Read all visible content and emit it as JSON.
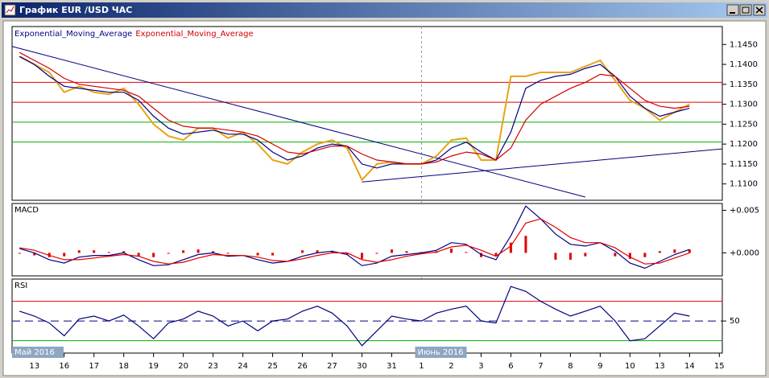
{
  "window": {
    "title": "График EUR /USD ЧАС"
  },
  "chart_data": {
    "type": "line",
    "x": [
      -0.5,
      0,
      0.5,
      1,
      1.5,
      2,
      2.5,
      3,
      3.5,
      4,
      4.5,
      5,
      5.5,
      6,
      6.5,
      7,
      7.5,
      8,
      8.5,
      9,
      9.5,
      10,
      10.5,
      11,
      11.5,
      12,
      12.5,
      13,
      13.5,
      14,
      14.5,
      15,
      15.5,
      16,
      16.5,
      17,
      17.5,
      18,
      18.5,
      19,
      19.5,
      20,
      20.5,
      21,
      21.5,
      22
    ],
    "xlim": [
      -0.75,
      23.1
    ],
    "xticks": [
      {
        "value": 0,
        "label": "13"
      },
      {
        "value": 1,
        "label": "16"
      },
      {
        "value": 2,
        "label": "17"
      },
      {
        "value": 3,
        "label": "18"
      },
      {
        "value": 4,
        "label": "19"
      },
      {
        "value": 5,
        "label": "20"
      },
      {
        "value": 6,
        "label": "23"
      },
      {
        "value": 7,
        "label": "24"
      },
      {
        "value": 8,
        "label": "25"
      },
      {
        "value": 9,
        "label": "26"
      },
      {
        "value": 10,
        "label": "27"
      },
      {
        "value": 11,
        "label": "30"
      },
      {
        "value": 12,
        "label": "31"
      },
      {
        "value": 13,
        "label": "1"
      },
      {
        "value": 14,
        "label": "2"
      },
      {
        "value": 15,
        "label": "3"
      },
      {
        "value": 16,
        "label": "6"
      },
      {
        "value": 17,
        "label": "7"
      },
      {
        "value": 18,
        "label": "8"
      },
      {
        "value": 19,
        "label": "9"
      },
      {
        "value": 20,
        "label": "10"
      },
      {
        "value": 21,
        "label": "13"
      },
      {
        "value": 22,
        "label": "14"
      },
      {
        "value": 23,
        "label": "15"
      }
    ],
    "periods": [
      {
        "value": -0.75,
        "label": "Май 2016"
      },
      {
        "value": 13,
        "label": "Июнь 2016"
      }
    ],
    "panels": [
      {
        "type": "line",
        "ylim": [
          1.1059,
          1.1495
        ],
        "yticks": [
          {
            "value": 1.11,
            "label": "1.1100"
          },
          {
            "value": 1.115,
            "label": "1.1150"
          },
          {
            "value": 1.12,
            "label": "1.1200"
          },
          {
            "value": 1.125,
            "label": "1.1250"
          },
          {
            "value": 1.13,
            "label": "1.1300"
          },
          {
            "value": 1.135,
            "label": "1.1350"
          },
          {
            "value": 1.14,
            "label": "1.1400"
          },
          {
            "value": 1.145,
            "label": "1.1450"
          }
        ],
        "levels": [
          {
            "value": 1.1355,
            "color": "#e00000"
          },
          {
            "value": 1.1305,
            "color": "#e00000"
          },
          {
            "value": 1.1255,
            "color": "#00b000"
          },
          {
            "value": 1.1205,
            "color": "#00b000"
          }
        ],
        "trendlines": [
          {
            "x": [
              -0.75,
              18.5
            ],
            "y": [
              1.1445,
              1.1067
            ],
            "color": "#000080"
          },
          {
            "x": [
              11,
              23.1
            ],
            "y": [
              1.1105,
              1.1188
            ],
            "color": "#000080"
          }
        ],
        "series": [
          {
            "color": "#e8a317",
            "values": [
              1.142,
              1.14,
              1.138,
              1.133,
              1.1345,
              1.133,
              1.1325,
              1.134,
              1.13,
              1.125,
              1.122,
              1.121,
              1.124,
              1.124,
              1.1215,
              1.123,
              1.12,
              1.116,
              1.115,
              1.118,
              1.12,
              1.121,
              1.119,
              1.111,
              1.115,
              1.1155,
              1.115,
              1.115,
              1.117,
              1.121,
              1.1215,
              1.116,
              1.116,
              1.137,
              1.137,
              1.138,
              1.138,
              1.138,
              1.1395,
              1.141,
              1.136,
              1.131,
              1.129,
              1.126,
              1.128,
              1.13
            ]
          },
          {
            "name": "Exponential_Moving_Average",
            "color": "#000080",
            "values": [
              1.142,
              1.14,
              1.137,
              1.1345,
              1.134,
              1.1335,
              1.133,
              1.133,
              1.131,
              1.127,
              1.124,
              1.1225,
              1.123,
              1.1235,
              1.1225,
              1.1225,
              1.121,
              1.118,
              1.116,
              1.117,
              1.119,
              1.12,
              1.1195,
              1.115,
              1.114,
              1.115,
              1.115,
              1.115,
              1.116,
              1.119,
              1.1205,
              1.118,
              1.116,
              1.123,
              1.134,
              1.136,
              1.137,
              1.1375,
              1.139,
              1.14,
              1.137,
              1.132,
              1.129,
              1.127,
              1.128,
              1.129
            ]
          },
          {
            "name": "Exponential_Moving_Average",
            "color": "#d00000",
            "values": [
              1.143,
              1.141,
              1.139,
              1.1365,
              1.135,
              1.1345,
              1.134,
              1.1335,
              1.132,
              1.129,
              1.126,
              1.1245,
              1.124,
              1.124,
              1.1235,
              1.123,
              1.122,
              1.12,
              1.118,
              1.1175,
              1.1185,
              1.1195,
              1.1195,
              1.1175,
              1.116,
              1.1155,
              1.115,
              1.115,
              1.1155,
              1.117,
              1.118,
              1.1175,
              1.116,
              1.119,
              1.126,
              1.13,
              1.132,
              1.134,
              1.1355,
              1.1375,
              1.137,
              1.134,
              1.131,
              1.1295,
              1.129,
              1.1295
            ]
          }
        ]
      },
      {
        "type": "line",
        "title": "MACD",
        "ylim": [
          -0.0027,
          0.0058
        ],
        "yticks": [
          {
            "value": 0.005,
            "label": "+0.005"
          },
          {
            "value": 0,
            "label": "+0.000"
          }
        ],
        "series": [
          {
            "kind": "bar",
            "color": "#e00000",
            "values": [
              -0.0001,
              -0.0003,
              -0.0005,
              -0.0004,
              0.0003,
              0.0003,
              0.0001,
              0.0002,
              -0.0004,
              -0.0005,
              -0.0001,
              0.0003,
              0.0004,
              0.0002,
              -0.0001,
              0,
              -0.0003,
              -0.0003,
              0,
              0.0003,
              0.0003,
              0.0002,
              -0.0002,
              -0.0007,
              -0.0001,
              0.0004,
              0.0002,
              0.0001,
              0.0002,
              0.0005,
              0.0001,
              -0.0005,
              -0.0004,
              0.0012,
              0.002,
              0,
              -0.0008,
              -0.0008,
              -0.0004,
              0,
              -0.0004,
              -0.0007,
              -0.0005,
              0.0002,
              0.0004,
              0.0004
            ]
          },
          {
            "color": "#000080",
            "values": [
              0.0005,
              0,
              -0.0008,
              -0.0012,
              -0.0005,
              -0.0003,
              -0.0003,
              0,
              -0.0008,
              -0.0015,
              -0.0014,
              -0.0008,
              -0.0002,
              0,
              -0.0004,
              -0.0003,
              -0.0008,
              -0.0012,
              -0.001,
              -0.0004,
              0,
              0.0002,
              -0.0002,
              -0.0015,
              -0.0012,
              -0.0004,
              -0.0002,
              0,
              0.0003,
              0.0012,
              0.001,
              -0.0002,
              -0.0008,
              0.002,
              0.0055,
              0.004,
              0.0022,
              0.001,
              0.0008,
              0.0012,
              0.0002,
              -0.0012,
              -0.0018,
              -0.001,
              -0.0002,
              0.0004
            ]
          },
          {
            "color": "#e00000",
            "values": [
              0.0006,
              0.0003,
              -0.0003,
              -0.0008,
              -0.0008,
              -0.0006,
              -0.0004,
              -0.0002,
              -0.0004,
              -0.001,
              -0.0013,
              -0.0011,
              -0.0006,
              -0.0002,
              -0.0003,
              -0.0003,
              -0.0005,
              -0.0009,
              -0.001,
              -0.0007,
              -0.0003,
              0,
              0,
              -0.0008,
              -0.0011,
              -0.0008,
              -0.0004,
              -0.0001,
              0.0001,
              0.0007,
              0.0009,
              0.0003,
              -0.0004,
              0.0008,
              0.0035,
              0.004,
              0.003,
              0.0018,
              0.0012,
              0.0012,
              0.0006,
              -0.0005,
              -0.0013,
              -0.0012,
              -0.0006,
              0
            ]
          }
        ]
      },
      {
        "type": "line",
        "title": "RSI",
        "ylim": [
          17.5,
          92.5
        ],
        "yticks": [
          50
        ],
        "levels": [
          {
            "value": 70,
            "color": "#e00000"
          },
          {
            "value": 30,
            "color": "#00b000"
          }
        ],
        "series": [
          {
            "color": "#000080",
            "values": [
              60,
              55,
              48,
              35,
              52,
              55,
              50,
              56,
              45,
              32,
              48,
              52,
              60,
              55,
              45,
              50,
              40,
              50,
              52,
              60,
              65,
              58,
              45,
              25,
              40,
              55,
              52,
              50,
              58,
              62,
              65,
              50,
              48,
              85,
              80,
              70,
              62,
              55,
              60,
              65,
              50,
              30,
              32,
              45,
              58,
              55
            ]
          }
        ]
      }
    ]
  }
}
